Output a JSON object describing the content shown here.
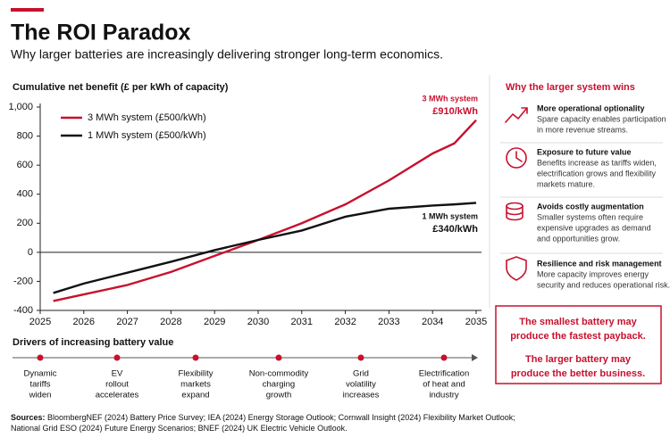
{
  "header": {
    "title": "The ROI Paradox",
    "subtitle": "Why larger batteries are increasingly delivering stronger long-term economics."
  },
  "chart_data": {
    "type": "line",
    "title": "Cumulative net benefit (£ per kWh of capacity)",
    "x": [
      2025.3,
      2026,
      2027,
      2028,
      2029,
      2030,
      2031,
      2032,
      2033,
      2034,
      2034.5,
      2035
    ],
    "series": [
      {
        "name": "3 MWh system (£500/kWh)",
        "color": "#c8102e",
        "values": [
          -335,
          -290,
          -225,
          -135,
          -25,
          85,
          200,
          330,
          495,
          680,
          750,
          910
        ]
      },
      {
        "name": "1 MWh system (£500/kWh)",
        "color": "#111111",
        "values": [
          -280,
          -215,
          -140,
          -65,
          15,
          85,
          150,
          245,
          300,
          322,
          330,
          340
        ]
      }
    ],
    "xlim": [
      2025,
      2035
    ],
    "xticks": [
      2025,
      2026,
      2027,
      2028,
      2029,
      2030,
      2031,
      2032,
      2033,
      2034,
      2035
    ],
    "ylim": [
      -400,
      1000
    ],
    "yticks": [
      -400,
      -200,
      0,
      200,
      400,
      600,
      800,
      {
        "value": 1000,
        "label": "1,000"
      }
    ],
    "grid": false,
    "legend": "upper left",
    "annotations": [
      {
        "lines": [
          "3 MWh system",
          "£910/kWh"
        ],
        "color": "#c8102e"
      },
      {
        "lines": [
          "1 MWh system",
          "£340/kWh"
        ],
        "color": "#111111"
      }
    ]
  },
  "drivers": {
    "title": "Drivers of increasing battery value",
    "items": [
      [
        "Dynamic",
        "tariffs",
        "widen"
      ],
      [
        "EV",
        "rollout",
        "accelerates"
      ],
      [
        "Flexibility",
        "markets",
        "expand"
      ],
      [
        "Non-commodity",
        "charging",
        "growth"
      ],
      [
        "Grid",
        "volatility",
        "increases"
      ],
      [
        "Electrification",
        "of heat and",
        "industry"
      ]
    ]
  },
  "panel": {
    "title": "Why the larger system wins",
    "items": [
      {
        "title": "More operational optionality",
        "lines": [
          "Spare capacity enables participation",
          "in more revenue streams."
        ]
      },
      {
        "title": "Exposure to future value",
        "lines": [
          "Benefits increase as tariffs widen,",
          "electrification grows and flexibility",
          "markets mature."
        ]
      },
      {
        "title": "Avoids costly augmentation",
        "lines": [
          "Smaller systems often require",
          "expensive upgrades as demand",
          "and opportunities grow."
        ]
      },
      {
        "title": "Resilience and risk management",
        "lines": [
          "More capacity improves energy",
          "security and reduces operational risk."
        ]
      }
    ],
    "callout": [
      [
        "The smallest battery may",
        "produce the fastest payback."
      ],
      [
        "The larger battery may",
        "produce the better business."
      ]
    ]
  },
  "sources": {
    "label": "Sources:",
    "lines": [
      "BloombergNEF (2024) Battery Price Survey; IEA (2024) Energy Storage Outlook; Cornwall Insight (2024) Flexibility Market Outlook;",
      "National Grid ESO (2024) Future Energy Scenarios; BNEF (2024) UK Electric Vehicle Outlook."
    ]
  }
}
